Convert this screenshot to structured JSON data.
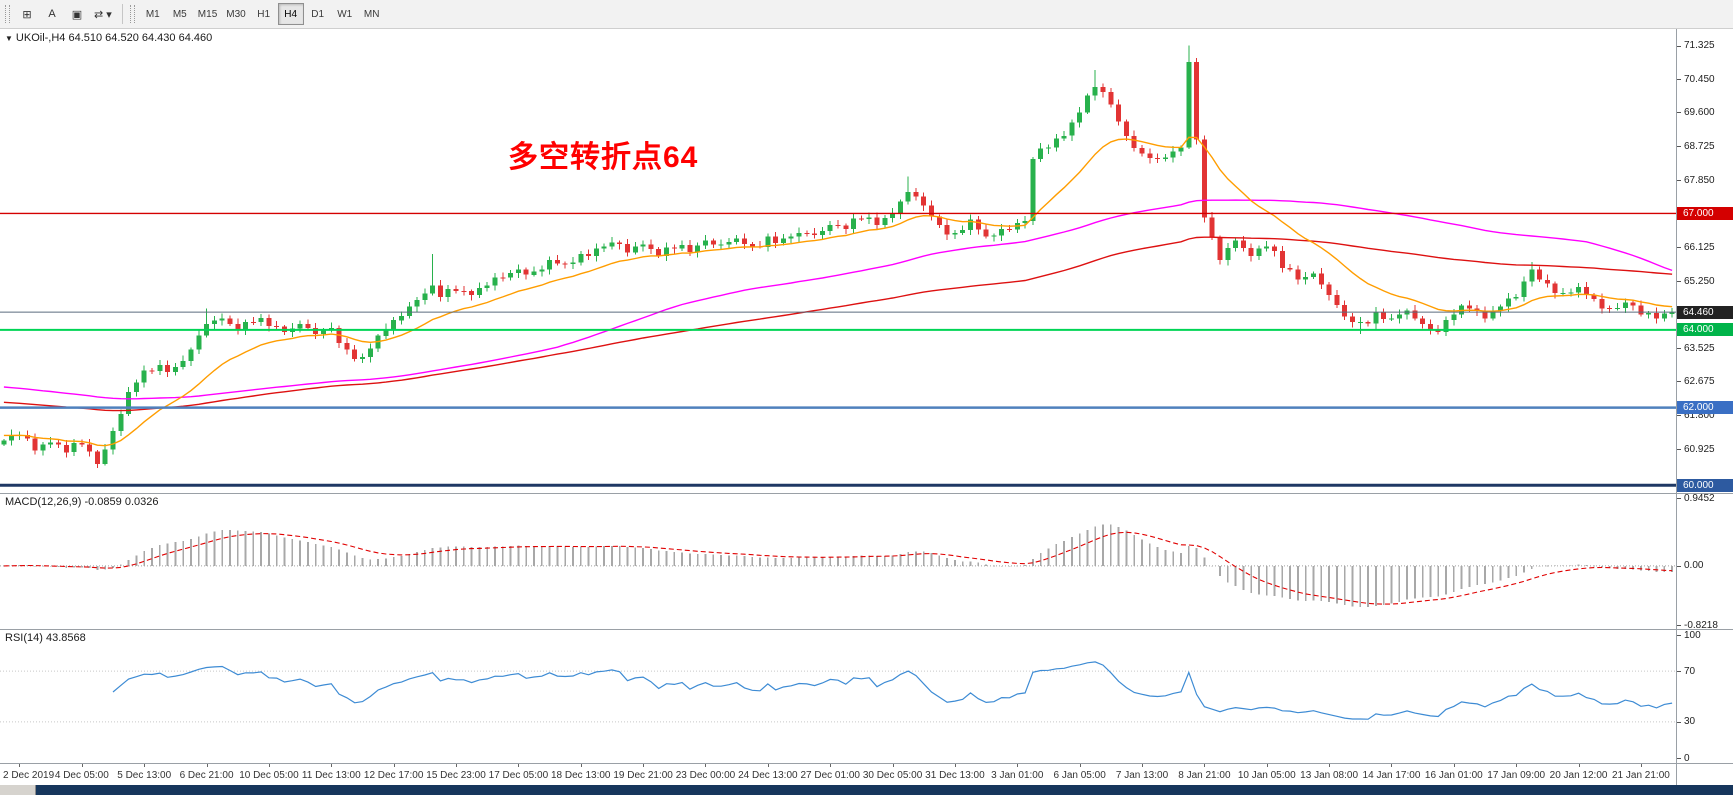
{
  "icons": {
    "triangle": "▼"
  },
  "toolbar": {
    "icons": [
      {
        "name": "charts-grid-icon",
        "glyph": "⊞"
      },
      {
        "name": "text-label-icon",
        "glyph": "A"
      },
      {
        "name": "chart-box-icon",
        "glyph": "▣"
      },
      {
        "name": "cycle-symbols-icon",
        "glyph": "⇄",
        "caret": "▾"
      }
    ],
    "timeframes": [
      "M1",
      "M5",
      "M15",
      "M30",
      "H1",
      "H4",
      "D1",
      "W1",
      "MN"
    ],
    "active_timeframe": "H4"
  },
  "chart_data": [
    {
      "type": "candlestick",
      "symbol": "UKOil-",
      "timeframe": "H4",
      "title": "UKOil-,H4 64.510 64.520 64.430 64.460",
      "ohlc": {
        "open": "64.510",
        "high": "64.520",
        "low": "64.430",
        "close": "64.460"
      },
      "annotation": {
        "text": "多空转折点64",
        "color": "#ff0000"
      },
      "candle_count": 215,
      "first_open": 61.05,
      "label_every": 8,
      "first_label_index": 2,
      "x_labels": [
        "2 Dec 2019",
        "4 Dec 05:00",
        "5 Dec 13:00",
        "6 Dec 21:00",
        "10 Dec 05:00",
        "11 Dec 13:00",
        "12 Dec 17:00",
        "15 Dec 23:00",
        "17 Dec 05:00",
        "18 Dec 13:00",
        "19 Dec 21:00",
        "23 Dec 00:00",
        "24 Dec 13:00",
        "27 Dec 01:00",
        "30 Dec 05:00",
        "31 Dec 13:00",
        "3 Jan 01:00",
        "6 Jan 05:00",
        "7 Jan 13:00",
        "8 Jan 21:00",
        "10 Jan 05:00",
        "13 Jan 08:00",
        "14 Jan 17:00",
        "16 Jan 01:00",
        "17 Jan 09:00",
        "20 Jan 12:00",
        "21 Jan 21:00"
      ],
      "price_axis": {
        "min": 59.8,
        "max": 71.75,
        "ticks": [
          "71.325",
          "70.450",
          "69.600",
          "68.725",
          "67.850",
          "66.125",
          "65.250",
          "63.525",
          "62.675",
          "61.800",
          "60.925"
        ],
        "badges": [
          {
            "value": "67.000",
            "price": 67.0,
            "bg": "#d40000"
          },
          {
            "value": "64.460",
            "price": 64.46,
            "bg": "#222222"
          },
          {
            "value": "64.000",
            "price": 64.0,
            "bg": "#00b44a"
          },
          {
            "value": "62.000",
            "price": 62.0,
            "bg": "#3a6fc4"
          },
          {
            "value": "60.000",
            "price": 60.0,
            "bg": "#2d5aa0"
          }
        ]
      },
      "hlines": [
        {
          "price": 67.0,
          "color": "#d40000",
          "width": 1.4
        },
        {
          "price": 64.0,
          "color": "#00d455",
          "width": 2
        },
        {
          "price": 62.0,
          "color": "#4f81bd",
          "width": 2.5
        },
        {
          "price": 60.0,
          "color": "#1f3864",
          "width": 3
        }
      ],
      "current_price": {
        "price": 64.46,
        "line_color": "#5a6b7d"
      },
      "colors": {
        "up": "#28b14c",
        "down": "#e23434"
      },
      "ma": [
        {
          "name": "slow",
          "type": "ema",
          "period": 130,
          "seed": 62.15,
          "color": "#dd1111",
          "width": 1.4
        },
        {
          "name": "mid",
          "type": "sma",
          "period": 72,
          "seed": 62.55,
          "color": "#ff00ff",
          "width": 1.4
        },
        {
          "name": "fast",
          "type": "ema",
          "period": 16,
          "seed": 61.3,
          "color": "#ff9d00",
          "width": 1.4
        }
      ],
      "anchors": [
        [
          0,
          61.15
        ],
        [
          2,
          61.3
        ],
        [
          4,
          60.9
        ],
        [
          6,
          61.1
        ],
        [
          8,
          60.85
        ],
        [
          10,
          61.05
        ],
        [
          12,
          60.55
        ],
        [
          14,
          61.4
        ],
        [
          16,
          62.4
        ],
        [
          18,
          62.95
        ],
        [
          20,
          63.1
        ],
        [
          22,
          63.05
        ],
        [
          24,
          63.5
        ],
        [
          26,
          64.15
        ],
        [
          28,
          64.3
        ],
        [
          30,
          64.0
        ],
        [
          32,
          64.2
        ],
        [
          34,
          64.1
        ],
        [
          36,
          63.95
        ],
        [
          38,
          64.15
        ],
        [
          40,
          63.9
        ],
        [
          42,
          64.05
        ],
        [
          44,
          63.5
        ],
        [
          46,
          63.3
        ],
        [
          48,
          63.85
        ],
        [
          50,
          64.25
        ],
        [
          52,
          64.6
        ],
        [
          55,
          65.15
        ],
        [
          56,
          64.85
        ],
        [
          58,
          65.0
        ],
        [
          60,
          64.9
        ],
        [
          62,
          65.15
        ],
        [
          64,
          65.35
        ],
        [
          66,
          65.55
        ],
        [
          68,
          65.5
        ],
        [
          70,
          65.8
        ],
        [
          72,
          65.7
        ],
        [
          74,
          65.95
        ],
        [
          76,
          66.1
        ],
        [
          78,
          66.25
        ],
        [
          80,
          66.0
        ],
        [
          82,
          66.2
        ],
        [
          84,
          65.9
        ],
        [
          86,
          66.1
        ],
        [
          88,
          66.0
        ],
        [
          90,
          66.3
        ],
        [
          92,
          66.2
        ],
        [
          94,
          66.35
        ],
        [
          96,
          66.15
        ],
        [
          98,
          66.4
        ],
        [
          100,
          66.35
        ],
        [
          102,
          66.5
        ],
        [
          104,
          66.45
        ],
        [
          106,
          66.7
        ],
        [
          108,
          66.6
        ],
        [
          110,
          66.85
        ],
        [
          112,
          66.7
        ],
        [
          114,
          67.0
        ],
        [
          116,
          67.55
        ],
        [
          118,
          67.2
        ],
        [
          120,
          66.7
        ],
        [
          122,
          66.5
        ],
        [
          124,
          66.85
        ],
        [
          126,
          66.4
        ],
        [
          128,
          66.6
        ],
        [
          130,
          66.75
        ],
        [
          131,
          66.8
        ],
        [
          132,
          68.4
        ],
        [
          134,
          68.7
        ],
        [
          136,
          69.0
        ],
        [
          138,
          69.6
        ],
        [
          140,
          70.25
        ],
        [
          142,
          69.8
        ],
        [
          144,
          69.0
        ],
        [
          146,
          68.55
        ],
        [
          148,
          68.4
        ],
        [
          150,
          68.6
        ],
        [
          151,
          68.7
        ],
        [
          152,
          70.9
        ],
        [
          153,
          68.9
        ],
        [
          154,
          66.9
        ],
        [
          156,
          65.8
        ],
        [
          158,
          66.3
        ],
        [
          160,
          65.9
        ],
        [
          162,
          66.15
        ],
        [
          164,
          65.6
        ],
        [
          166,
          65.3
        ],
        [
          168,
          65.45
        ],
        [
          170,
          64.9
        ],
        [
          172,
          64.35
        ],
        [
          174,
          64.2
        ],
        [
          176,
          64.45
        ],
        [
          178,
          64.3
        ],
        [
          180,
          64.5
        ],
        [
          182,
          64.15
        ],
        [
          184,
          63.95
        ],
        [
          186,
          64.4
        ],
        [
          188,
          64.55
        ],
        [
          190,
          64.3
        ],
        [
          192,
          64.6
        ],
        [
          194,
          64.85
        ],
        [
          196,
          65.55
        ],
        [
          198,
          65.2
        ],
        [
          200,
          64.95
        ],
        [
          202,
          65.1
        ],
        [
          204,
          64.8
        ],
        [
          206,
          64.55
        ],
        [
          208,
          64.7
        ],
        [
          210,
          64.4
        ],
        [
          212,
          64.3
        ],
        [
          214,
          64.46
        ]
      ],
      "wick_overrides": [
        [
          12,
          "low",
          60.45
        ],
        [
          26,
          "high",
          64.55
        ],
        [
          55,
          "high",
          65.95
        ],
        [
          116,
          "high",
          67.95
        ],
        [
          140,
          "high",
          70.7
        ],
        [
          152,
          "high",
          71.325
        ],
        [
          174,
          "low",
          63.9
        ],
        [
          196,
          "high",
          65.75
        ]
      ]
    },
    {
      "type": "bar",
      "name": "MACD",
      "label": "MACD(12,26,9) -0.0859 0.0326",
      "params": {
        "fast": 12,
        "slow": 26,
        "signal": 9
      },
      "current": {
        "macd": "-0.0859",
        "signal": "0.0326"
      },
      "range": {
        "min": -0.8218,
        "max": 0.9452
      },
      "axis_ticks": [
        "0.9452",
        "0.00",
        "-0.8218"
      ],
      "colors": {
        "histogram": "#a8a8a8",
        "signal": "#e00000",
        "zero_line": "#a0a0a0"
      },
      "display_scale": 0.65
    },
    {
      "type": "line",
      "name": "RSI",
      "label": "RSI(14) 43.8568",
      "period": 14,
      "current": "43.8568",
      "range": {
        "min": 0,
        "max": 100
      },
      "levels": [
        70,
        30
      ],
      "axis_ticks": [
        "100",
        "70",
        "30",
        "0"
      ],
      "colors": {
        "line": "#3d8bd4",
        "levels": "#c8c8c8"
      },
      "display_gain": 0.75
    }
  ]
}
